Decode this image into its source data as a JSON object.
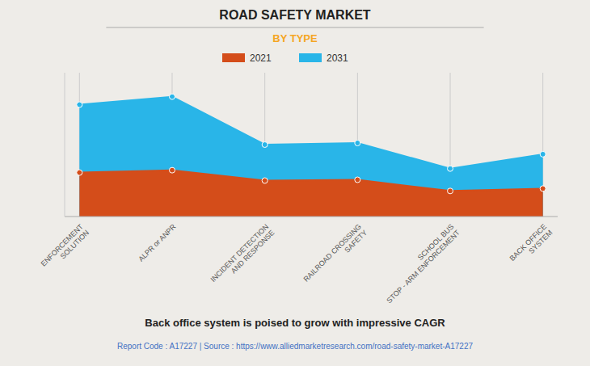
{
  "chart_data": {
    "type": "area",
    "title": "ROAD SAFETY MARKET",
    "subtitle": "BY TYPE",
    "categories": [
      "ENFORCEMENT\nSOLUTION",
      "ALPR or ANPR",
      "INCIDENT DETECTION\nAND RESPONSE",
      "RAILROAD CROSSING\nSAFETY",
      "SCHOOL BUS\nSTOP - ARM ENFORCEMENT",
      "BACK OFFICE\nSYSTEM"
    ],
    "series": [
      {
        "name": "2021",
        "color": "#d44d1a",
        "values": [
          5.5,
          5.8,
          4.5,
          4.6,
          3.2,
          3.5
        ]
      },
      {
        "name": "2031",
        "color": "#29b5e8",
        "values": [
          14.0,
          15.0,
          9.0,
          9.2,
          6.0,
          7.8
        ]
      }
    ],
    "ylim": [
      0,
      18
    ],
    "grid": true,
    "tick_labels": "x",
    "marker": "circle",
    "annotations": [
      "Back office system is poised to grow with impressive CAGR",
      "Report Code : A17227  |  Source : https://www.alliedmarketresearch.com/road-safety-market-A17227"
    ]
  }
}
